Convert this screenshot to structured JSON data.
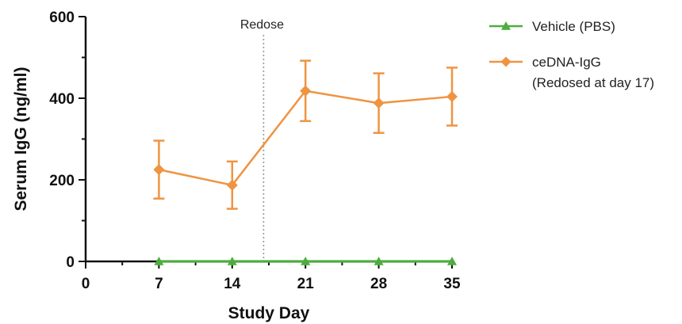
{
  "chart_data": {
    "type": "line",
    "xlabel": "Study Day",
    "ylabel": "Serum  IgG  (ng/ml)",
    "xlim": [
      0,
      35
    ],
    "ylim": [
      0,
      600
    ],
    "x_ticks": [
      0,
      7,
      14,
      21,
      28,
      35
    ],
    "y_ticks": [
      0,
      200,
      400,
      600
    ],
    "grid": false,
    "legend_position": "top-right",
    "annotations": [
      {
        "text": "Redose",
        "x": 17,
        "style": "dotted vertical line"
      }
    ],
    "series": [
      {
        "name": "Vehicle (PBS)",
        "marker": "triangle",
        "color": "#4cae3f",
        "x": [
          7,
          14,
          21,
          28,
          35
        ],
        "y": [
          0,
          0,
          0,
          0,
          0
        ]
      },
      {
        "name": "ceDNA-IgG",
        "name_line2": "(Redosed at day 17)",
        "marker": "diamond",
        "color": "#ef9441",
        "x": [
          7,
          14,
          21,
          28,
          35
        ],
        "y": [
          225,
          187,
          418,
          388,
          404
        ],
        "error": [
          71,
          58,
          74,
          73,
          71
        ]
      }
    ]
  }
}
